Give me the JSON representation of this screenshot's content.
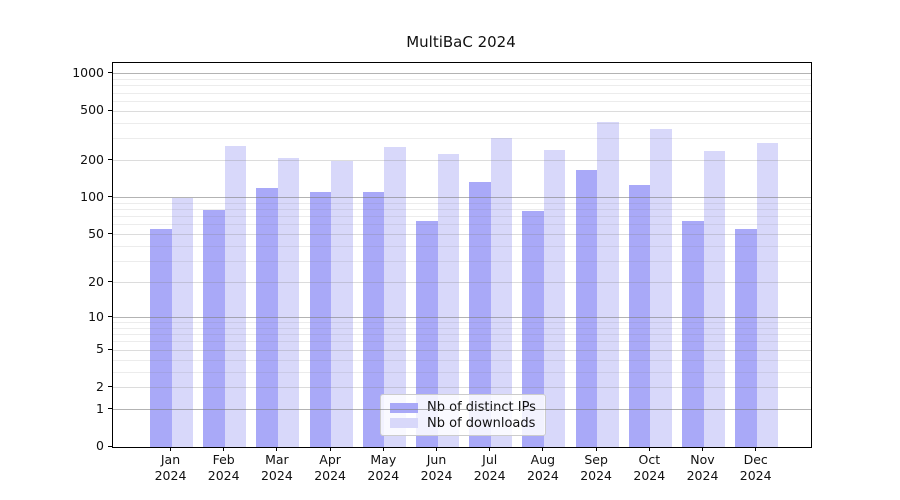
{
  "title": "MultiBaC 2024",
  "chart_data": {
    "type": "bar",
    "title": "MultiBaC 2024",
    "categories": [
      "Jan",
      "Feb",
      "Mar",
      "Apr",
      "May",
      "Jun",
      "Jul",
      "Aug",
      "Sep",
      "Oct",
      "Nov",
      "Dec"
    ],
    "category_year": "2024",
    "series": [
      {
        "name": "Nb of distinct IPs",
        "color": "#a9a9f8",
        "values": [
          56,
          80,
          119,
          112,
          112,
          65,
          135,
          78,
          169,
          128,
          65,
          56
        ]
      },
      {
        "name": "Nb of downloads",
        "color": "#d8d8fa",
        "values": [
          100,
          260,
          211,
          200,
          259,
          225,
          306,
          242,
          410,
          362,
          240,
          276
        ]
      }
    ],
    "xlabel": "",
    "ylabel": "",
    "yscale": "log1p",
    "ylim": [
      0,
      1224
    ],
    "yticks": [
      0,
      1,
      2,
      5,
      10,
      20,
      50,
      100,
      200,
      500,
      1000
    ],
    "ytick_major": [
      1,
      10,
      100,
      1000
    ],
    "yminor_gridlines": [
      3,
      4,
      6,
      7,
      8,
      9,
      30,
      40,
      60,
      70,
      80,
      90,
      300,
      400,
      600,
      700,
      800,
      900
    ],
    "grid": "on",
    "legend_position": "lower-center"
  }
}
